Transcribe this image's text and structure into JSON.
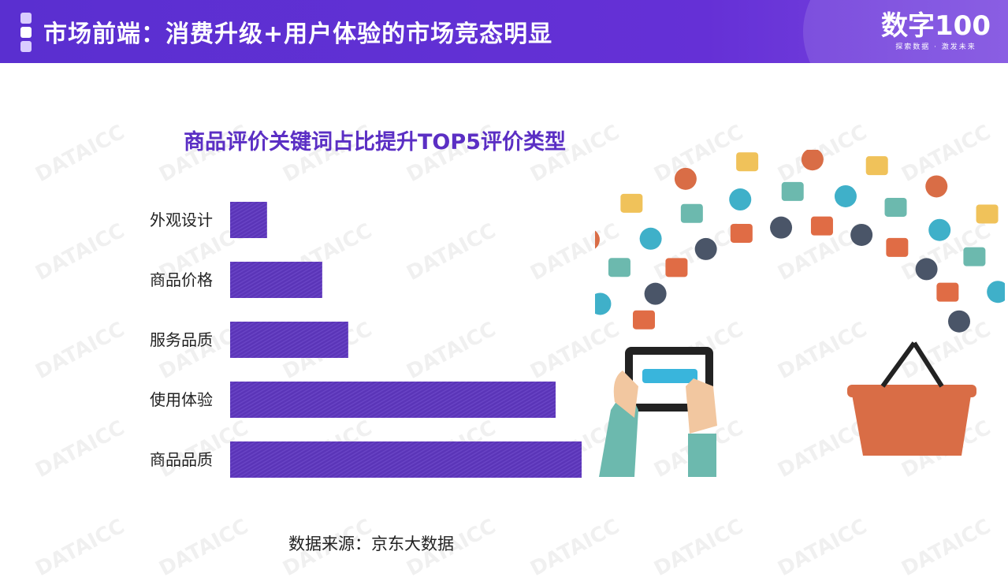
{
  "header": {
    "title": "市场前端：消费升级+用户体验的市场竞态明显",
    "logo_text": "数字100",
    "logo_tagline": "探索数据 · 激发未来",
    "watermark": "DATAICC"
  },
  "colors": {
    "header": "#5a2fd0",
    "bar": "#5b35b8",
    "title": "#5b2fc4"
  },
  "chart_data": {
    "type": "bar",
    "orientation": "horizontal",
    "title": "商品评价关键词占比提升TOP5评价类型",
    "categories": [
      "外观设计",
      "商品价格",
      "服务品质",
      "使用体验",
      "商品品质"
    ],
    "values": [
      10.5,
      26.2,
      33.6,
      92.6,
      100
    ],
    "xlabel": "",
    "ylabel": "",
    "grid": false
  },
  "source": "数据来源：京东大数据"
}
